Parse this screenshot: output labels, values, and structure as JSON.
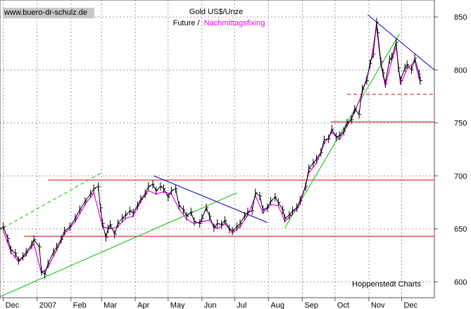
{
  "watermark": "www.buero-dr-schulz.de",
  "source_label": "Hoppenstedt Charts",
  "colors": {
    "price_bars": "#000000",
    "fixing_line": "#ee00ee",
    "uptrend": "#00bb00",
    "downtrend": "#0000cc",
    "levels": "#e00000",
    "grid": "#9a9a9a",
    "watermark_bg": "#c8c8c8"
  },
  "chart_data": {
    "type": "line",
    "title": "Gold US$/Unze",
    "subtitle_part1": "Future /",
    "subtitle_part2": "Nachmittagsfixing",
    "xlabel": "",
    "ylabel": "",
    "ylim": [
      585,
      866
    ],
    "yticks": [
      600,
      650,
      700,
      750,
      800,
      850
    ],
    "x_range": [
      "2006-11-28",
      "2007-12-31"
    ],
    "x_ticks": [
      {
        "label": "Dec",
        "date": "2006-12-01"
      },
      {
        "label": "2007",
        "date": "2007-01-01"
      },
      {
        "label": "Feb",
        "date": "2007-02-01"
      },
      {
        "label": "Mar",
        "date": "2007-03-01"
      },
      {
        "label": "Apr",
        "date": "2007-04-01"
      },
      {
        "label": "May",
        "date": "2007-05-01"
      },
      {
        "label": "Jun",
        "date": "2007-06-01"
      },
      {
        "label": "Jul",
        "date": "2007-07-01"
      },
      {
        "label": "Aug",
        "date": "2007-08-01"
      },
      {
        "label": "Sep",
        "date": "2007-09-01"
      },
      {
        "label": "Oct",
        "date": "2007-10-01"
      },
      {
        "label": "Nov",
        "date": "2007-11-01"
      },
      {
        "label": "Dec",
        "date": "2007-12-01"
      }
    ],
    "grid": true,
    "series": [
      {
        "name": "Future",
        "points": [
          [
            "2006-11-28",
            650
          ],
          [
            "2006-12-01",
            652
          ],
          [
            "2006-12-05",
            641
          ],
          [
            "2006-12-08",
            630
          ],
          [
            "2006-12-12",
            627
          ],
          [
            "2006-12-15",
            620
          ],
          [
            "2006-12-19",
            624
          ],
          [
            "2006-12-22",
            628
          ],
          [
            "2006-12-27",
            635
          ],
          [
            "2006-12-29",
            640
          ],
          [
            "2007-01-03",
            633
          ],
          [
            "2007-01-05",
            610
          ],
          [
            "2007-01-08",
            607
          ],
          [
            "2007-01-11",
            617
          ],
          [
            "2007-01-16",
            628
          ],
          [
            "2007-01-19",
            633
          ],
          [
            "2007-01-23",
            640
          ],
          [
            "2007-01-26",
            648
          ],
          [
            "2007-01-31",
            652
          ],
          [
            "2007-02-05",
            660
          ],
          [
            "2007-02-09",
            668
          ],
          [
            "2007-02-14",
            676
          ],
          [
            "2007-02-19",
            683
          ],
          [
            "2007-02-22",
            688
          ],
          [
            "2007-02-26",
            690
          ],
          [
            "2007-02-28",
            670
          ],
          [
            "2007-03-02",
            655
          ],
          [
            "2007-03-05",
            642
          ],
          [
            "2007-03-07",
            650
          ],
          [
            "2007-03-09",
            654
          ],
          [
            "2007-03-13",
            645
          ],
          [
            "2007-03-16",
            655
          ],
          [
            "2007-03-20",
            660
          ],
          [
            "2007-03-23",
            663
          ],
          [
            "2007-03-27",
            667
          ],
          [
            "2007-03-30",
            665
          ],
          [
            "2007-04-03",
            672
          ],
          [
            "2007-04-06",
            678
          ],
          [
            "2007-04-10",
            683
          ],
          [
            "2007-04-13",
            690
          ],
          [
            "2007-04-17",
            692
          ],
          [
            "2007-04-20",
            686
          ],
          [
            "2007-04-24",
            690
          ],
          [
            "2007-04-27",
            688
          ],
          [
            "2007-05-01",
            680
          ],
          [
            "2007-05-04",
            686
          ],
          [
            "2007-05-08",
            688
          ],
          [
            "2007-05-11",
            672
          ],
          [
            "2007-05-15",
            668
          ],
          [
            "2007-05-18",
            662
          ],
          [
            "2007-05-22",
            666
          ],
          [
            "2007-05-25",
            657
          ],
          [
            "2007-05-30",
            655
          ],
          [
            "2007-06-01",
            660
          ],
          [
            "2007-06-05",
            670
          ],
          [
            "2007-06-08",
            662
          ],
          [
            "2007-06-12",
            651
          ],
          [
            "2007-06-15",
            655
          ],
          [
            "2007-06-19",
            654
          ],
          [
            "2007-06-22",
            658
          ],
          [
            "2007-06-26",
            650
          ],
          [
            "2007-06-29",
            648
          ],
          [
            "2007-07-03",
            652
          ],
          [
            "2007-07-06",
            655
          ],
          [
            "2007-07-10",
            662
          ],
          [
            "2007-07-13",
            666
          ],
          [
            "2007-07-17",
            667
          ],
          [
            "2007-07-20",
            684
          ],
          [
            "2007-07-24",
            681
          ],
          [
            "2007-07-27",
            668
          ],
          [
            "2007-07-31",
            670
          ],
          [
            "2007-08-03",
            676
          ],
          [
            "2007-08-07",
            680
          ],
          [
            "2007-08-10",
            675
          ],
          [
            "2007-08-14",
            668
          ],
          [
            "2007-08-16",
            660
          ],
          [
            "2007-08-20",
            663
          ],
          [
            "2007-08-23",
            667
          ],
          [
            "2007-08-27",
            670
          ],
          [
            "2007-08-30",
            677
          ],
          [
            "2007-09-04",
            690
          ],
          [
            "2007-09-07",
            707
          ],
          [
            "2007-09-11",
            712
          ],
          [
            "2007-09-14",
            716
          ],
          [
            "2007-09-18",
            722
          ],
          [
            "2007-09-21",
            734
          ],
          [
            "2007-09-25",
            735
          ],
          [
            "2007-09-28",
            744
          ],
          [
            "2007-10-02",
            737
          ],
          [
            "2007-10-05",
            738
          ],
          [
            "2007-10-09",
            742
          ],
          [
            "2007-10-12",
            750
          ],
          [
            "2007-10-16",
            753
          ],
          [
            "2007-10-19",
            763
          ],
          [
            "2007-10-23",
            758
          ],
          [
            "2007-10-26",
            782
          ],
          [
            "2007-10-30",
            790
          ],
          [
            "2007-11-02",
            806
          ],
          [
            "2007-11-05",
            815
          ],
          [
            "2007-11-08",
            845
          ],
          [
            "2007-11-09",
            835
          ],
          [
            "2007-11-12",
            808
          ],
          [
            "2007-11-14",
            797
          ],
          [
            "2007-11-16",
            787
          ],
          [
            "2007-11-20",
            810
          ],
          [
            "2007-11-22",
            812
          ],
          [
            "2007-11-26",
            826
          ],
          [
            "2007-11-28",
            802
          ],
          [
            "2007-11-30",
            790
          ],
          [
            "2007-12-04",
            802
          ],
          [
            "2007-12-06",
            805
          ],
          [
            "2007-12-10",
            800
          ],
          [
            "2007-12-13",
            811
          ],
          [
            "2007-12-17",
            796
          ],
          [
            "2007-12-18",
            790
          ]
        ]
      },
      {
        "name": "Nachmittagsfixing",
        "points": [
          [
            "2006-12-01",
            648
          ],
          [
            "2006-12-08",
            628
          ],
          [
            "2006-12-15",
            619
          ],
          [
            "2006-12-22",
            626
          ],
          [
            "2006-12-29",
            636
          ],
          [
            "2007-01-05",
            608
          ],
          [
            "2007-01-11",
            614
          ],
          [
            "2007-01-19",
            630
          ],
          [
            "2007-01-26",
            645
          ],
          [
            "2007-02-05",
            657
          ],
          [
            "2007-02-14",
            673
          ],
          [
            "2007-02-22",
            684
          ],
          [
            "2007-03-02",
            652
          ],
          [
            "2007-03-09",
            650
          ],
          [
            "2007-03-16",
            652
          ],
          [
            "2007-03-23",
            660
          ],
          [
            "2007-03-30",
            662
          ],
          [
            "2007-04-06",
            676
          ],
          [
            "2007-04-13",
            686
          ],
          [
            "2007-04-20",
            683
          ],
          [
            "2007-04-27",
            685
          ],
          [
            "2007-05-04",
            683
          ],
          [
            "2007-05-11",
            669
          ],
          [
            "2007-05-18",
            659
          ],
          [
            "2007-05-25",
            655
          ],
          [
            "2007-06-01",
            657
          ],
          [
            "2007-06-08",
            658
          ],
          [
            "2007-06-15",
            650
          ],
          [
            "2007-06-22",
            655
          ],
          [
            "2007-06-29",
            646
          ],
          [
            "2007-07-06",
            652
          ],
          [
            "2007-07-13",
            663
          ],
          [
            "2007-07-20",
            681
          ],
          [
            "2007-07-27",
            665
          ],
          [
            "2007-08-03",
            673
          ],
          [
            "2007-08-10",
            672
          ],
          [
            "2007-08-16",
            657
          ],
          [
            "2007-08-23",
            664
          ],
          [
            "2007-08-30",
            673
          ],
          [
            "2007-09-07",
            703
          ],
          [
            "2007-09-14",
            712
          ],
          [
            "2007-09-21",
            730
          ],
          [
            "2007-09-28",
            741
          ],
          [
            "2007-10-05",
            734
          ],
          [
            "2007-10-12",
            747
          ],
          [
            "2007-10-19",
            760
          ],
          [
            "2007-10-26",
            779
          ],
          [
            "2007-11-02",
            803
          ],
          [
            "2007-11-08",
            841
          ],
          [
            "2007-11-12",
            805
          ],
          [
            "2007-11-16",
            785
          ],
          [
            "2007-11-22",
            809
          ],
          [
            "2007-11-26",
            822
          ],
          [
            "2007-11-30",
            786
          ],
          [
            "2007-12-06",
            801
          ],
          [
            "2007-12-13",
            808
          ],
          [
            "2007-12-18",
            788
          ]
        ]
      }
    ],
    "horizontal_levels": [
      {
        "value": 643,
        "style": "solid",
        "from": "2006-12-20"
      },
      {
        "value": 696,
        "style": "solid",
        "from": "2007-01-11"
      },
      {
        "value": 751,
        "style": "solid",
        "from": "2007-09-27"
      },
      {
        "value": 777,
        "style": "dashed",
        "from": "2007-10-12"
      }
    ],
    "trend_lines": [
      {
        "kind": "uptrend",
        "style": "solid",
        "from": [
          "2006-11-28",
          586
        ],
        "to": [
          "2007-07-03",
          684
        ]
      },
      {
        "kind": "uptrend",
        "style": "dashed",
        "from": [
          "2006-12-01",
          651
        ],
        "to": [
          "2007-03-01",
          703
        ]
      },
      {
        "kind": "downtrend",
        "style": "solid",
        "from": [
          "2007-04-18",
          700
        ],
        "to": [
          "2007-07-31",
          656
        ]
      },
      {
        "kind": "uptrend",
        "style": "solid",
        "from": [
          "2007-08-16",
          651
        ],
        "to": [
          "2007-11-29",
          834
        ]
      },
      {
        "kind": "downtrend",
        "style": "solid",
        "from": [
          "2007-10-31",
          852
        ],
        "to": [
          "2007-12-31",
          800
        ]
      }
    ]
  }
}
